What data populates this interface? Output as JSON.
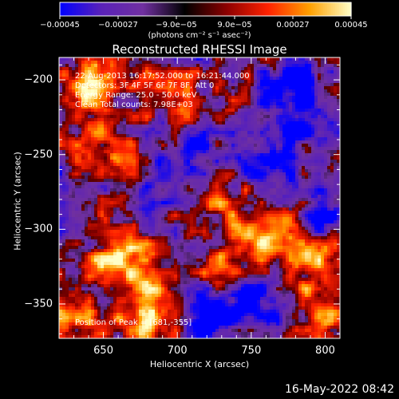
{
  "chart_data": {
    "type": "heatmap",
    "title": "Reconstructed RHESSI Image",
    "xlabel": "Heliocentric X (arcsec)",
    "ylabel": "Heliocentric Y (arcsec)",
    "xlim": [
      620,
      810
    ],
    "ylim": [
      -373,
      -185
    ],
    "x_ticks": [
      650,
      700,
      750,
      800
    ],
    "x_tick_labels": [
      "650",
      "700",
      "750",
      "800"
    ],
    "y_ticks": [
      -200,
      -250,
      -300,
      -350
    ],
    "y_tick_labels": [
      "−200",
      "−250",
      "−300",
      "−350"
    ],
    "colorbar": {
      "range": [
        -0.00045,
        0.00045
      ],
      "tick_values": [
        -0.00045,
        -0.00027,
        -9e-05,
        9e-05,
        0.00027,
        0.00045
      ],
      "tick_labels": [
        "−0.00045",
        "−0.00027",
        "−9.0e−05",
        "9.0e−05",
        "0.00027",
        "0.00045"
      ],
      "unit_label": "(photons cm⁻² s⁻¹ asec⁻²)",
      "colormap": [
        "#0000ff",
        "#5a22b8",
        "#7030a0",
        "#000000",
        "#8b0000",
        "#ff2200",
        "#ffa000",
        "#ffffc8"
      ]
    },
    "annotations": [
      "22-Aug-2013 16:17:52.000 to 16:21:44.000",
      "Detectors: 3F 4F 5F 6F 7F 8F, Att 0",
      "Energy Range: 25.0 - 50.0 keV",
      "Clean    Total counts: 7.98E+03",
      "Position of Peak = [681,-355]"
    ],
    "peak_position": [
      681,
      -355
    ],
    "bright_regions": [
      {
        "x": 681,
        "y": -355,
        "intensity": 1.0
      },
      {
        "x": 660,
        "y": -320,
        "intensity": 0.85
      },
      {
        "x": 640,
        "y": -205,
        "intensity": 0.8
      },
      {
        "x": 650,
        "y": -240,
        "intensity": 0.55
      },
      {
        "x": 762,
        "y": -305,
        "intensity": 0.75
      },
      {
        "x": 735,
        "y": -320,
        "intensity": 0.65
      },
      {
        "x": 795,
        "y": -320,
        "intensity": 0.7
      },
      {
        "x": 800,
        "y": -360,
        "intensity": 0.6
      },
      {
        "x": 628,
        "y": -365,
        "intensity": 0.65
      },
      {
        "x": 700,
        "y": -215,
        "intensity": 0.45
      },
      {
        "x": 725,
        "y": -280,
        "intensity": 0.45
      }
    ],
    "dark_regions": [
      {
        "x": 745,
        "y": -345,
        "intensity": -0.75
      },
      {
        "x": 705,
        "y": -250,
        "intensity": -0.55
      },
      {
        "x": 800,
        "y": -290,
        "intensity": -0.55
      },
      {
        "x": 780,
        "y": -228,
        "intensity": -0.5
      },
      {
        "x": 760,
        "y": -250,
        "intensity": -0.5
      },
      {
        "x": 720,
        "y": -365,
        "intensity": -0.5
      },
      {
        "x": 780,
        "y": -200,
        "intensity": -0.45
      }
    ]
  },
  "footer": {
    "timestamp": "16-May-2022 08:42"
  }
}
